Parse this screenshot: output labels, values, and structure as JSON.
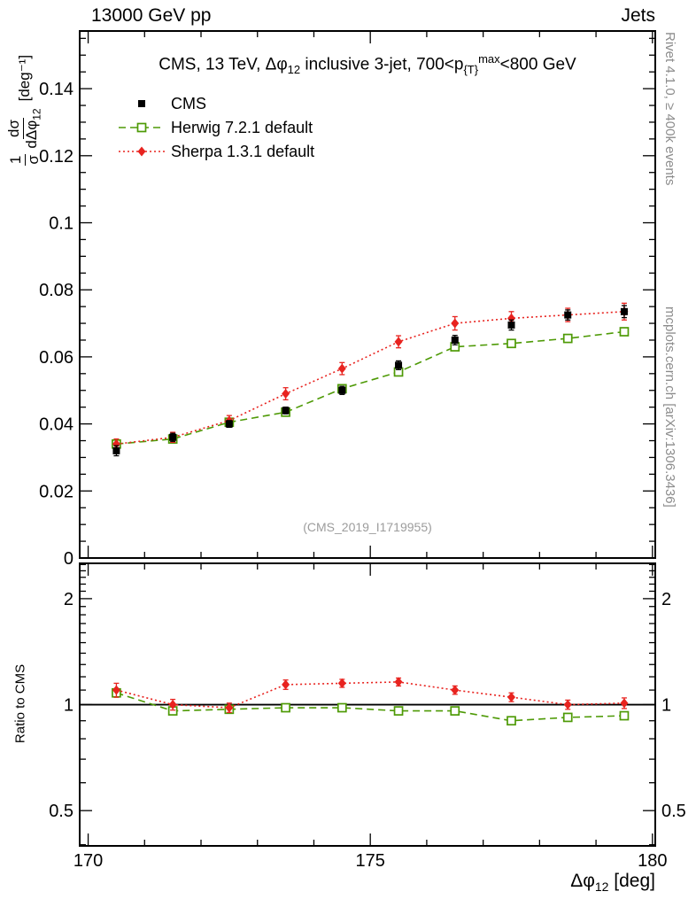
{
  "header": {
    "left": "13000 GeV pp",
    "right": "Jets"
  },
  "title": {
    "p1": "CMS, 13 TeV, Δφ",
    "s1": "12",
    "p2": " inclusive 3-jet, 700<p",
    "s2": "{T}",
    "sup2": "max",
    "p3": "<800 GeV"
  },
  "ylabel": {
    "f1num": "1",
    "f1den": "σ",
    "f2num": "dσ",
    "f2den": "dΔφ",
    "f2sub": "12",
    "units": "[deg⁻¹]"
  },
  "ratio_label": "Ratio to CMS",
  "xtitle": {
    "p1": "Δφ",
    "sub": "12",
    "p2": " [deg]"
  },
  "watermark": "(CMS_2019_I1719955)",
  "side": {
    "rivet": "Rivet 4.1.0, ≥ 400k events",
    "mcplots": "mcplots.cern.ch [arXiv:1306.3436]"
  },
  "chart_data": {
    "type": "line",
    "title_plain": "CMS, 13 TeV, Δφ_12 inclusive 3-jet, 700<p_{T}^max<800 GeV",
    "xlabel_plain": "Δφ_12 [deg]",
    "ylabel_plain": "1/σ dσ/dΔφ_12 [deg^-1]",
    "ratio_ylabel_plain": "Ratio to CMS",
    "legend_position": "top-left",
    "grid": false,
    "xlim": [
      169.85,
      180.05
    ],
    "x": [
      170.5,
      171.5,
      172.5,
      173.5,
      174.5,
      175.5,
      176.5,
      177.5,
      178.5,
      179.5
    ],
    "x_ticks": [
      {
        "v": 170,
        "label": "170"
      },
      {
        "v": 175,
        "label": "175"
      },
      {
        "v": 180,
        "label": "180"
      }
    ],
    "main": {
      "ylim": [
        0,
        0.1572
      ],
      "y_ticks": [
        {
          "v": 0,
          "label": "0"
        },
        {
          "v": 0.02,
          "label": "0.02"
        },
        {
          "v": 0.04,
          "label": "0.04"
        },
        {
          "v": 0.06,
          "label": "0.06"
        },
        {
          "v": 0.08,
          "label": "0.08"
        },
        {
          "v": 0.1,
          "label": "0.1"
        },
        {
          "v": 0.12,
          "label": "0.12"
        },
        {
          "v": 0.14,
          "label": "0.14"
        }
      ],
      "series": [
        {
          "name": "CMS",
          "color": "#000000",
          "marker": "square-filled",
          "line": "none",
          "values": [
            0.032,
            0.036,
            0.04,
            0.044,
            0.05,
            0.0575,
            0.065,
            0.0695,
            0.0725,
            0.0735
          ],
          "errors": [
            0.0015,
            0.0012,
            0.001,
            0.001,
            0.0012,
            0.0013,
            0.0014,
            0.0015,
            0.0015,
            0.0018
          ]
        },
        {
          "name": "Herwig 7.2.1 default",
          "color": "#4e9a06",
          "marker": "square-open",
          "line": "dashed",
          "values": [
            0.034,
            0.0355,
            0.0405,
            0.0435,
            0.0505,
            0.0555,
            0.063,
            0.064,
            0.0655,
            0.0675
          ],
          "errors": [
            0.0008,
            0.0007,
            0.0007,
            0.0007,
            0.0008,
            0.0008,
            0.0009,
            0.0009,
            0.0009,
            0.001
          ]
        },
        {
          "name": "Sherpa 1.3.1 default",
          "color": "#e8231f",
          "marker": "diamond-filled",
          "line": "dotted",
          "values": [
            0.034,
            0.036,
            0.041,
            0.049,
            0.0565,
            0.0645,
            0.07,
            0.0715,
            0.0725,
            0.0735
          ],
          "errors": [
            0.0015,
            0.0015,
            0.0015,
            0.0018,
            0.0018,
            0.0018,
            0.002,
            0.002,
            0.002,
            0.0025
          ]
        }
      ]
    },
    "ratio": {
      "scale": "log",
      "ylim": [
        0.397,
        2.52
      ],
      "reference": 1,
      "y_ticks": [
        {
          "v": 0.5,
          "label": "0.5"
        },
        {
          "v": 1,
          "label": "1"
        },
        {
          "v": 2,
          "label": "2"
        }
      ],
      "minor_ticks": [
        0.4,
        0.5,
        0.6,
        0.7,
        0.8,
        0.9,
        1,
        1.1,
        1.2,
        1.3,
        1.4,
        1.5,
        1.6,
        1.7,
        1.8,
        1.9,
        2,
        2.1,
        2.2,
        2.3,
        2.4,
        2.5
      ],
      "series": [
        {
          "name": "Herwig 7.2.1 default",
          "color": "#4e9a06",
          "marker": "square-open",
          "line": "dashed",
          "values": [
            1.08,
            0.96,
            0.97,
            0.98,
            0.98,
            0.96,
            0.96,
            0.9,
            0.92,
            0.93
          ],
          "errors": [
            0.03,
            0.02,
            0.02,
            0.02,
            0.02,
            0.02,
            0.02,
            0.02,
            0.02,
            0.02
          ]
        },
        {
          "name": "Sherpa 1.3.1 default",
          "color": "#e8231f",
          "marker": "diamond-filled",
          "line": "dotted",
          "values": [
            1.1,
            1.0,
            0.98,
            1.14,
            1.15,
            1.16,
            1.1,
            1.05,
            1.0,
            1.01
          ],
          "errors": [
            0.05,
            0.035,
            0.03,
            0.035,
            0.03,
            0.03,
            0.03,
            0.03,
            0.03,
            0.035
          ]
        }
      ]
    }
  }
}
